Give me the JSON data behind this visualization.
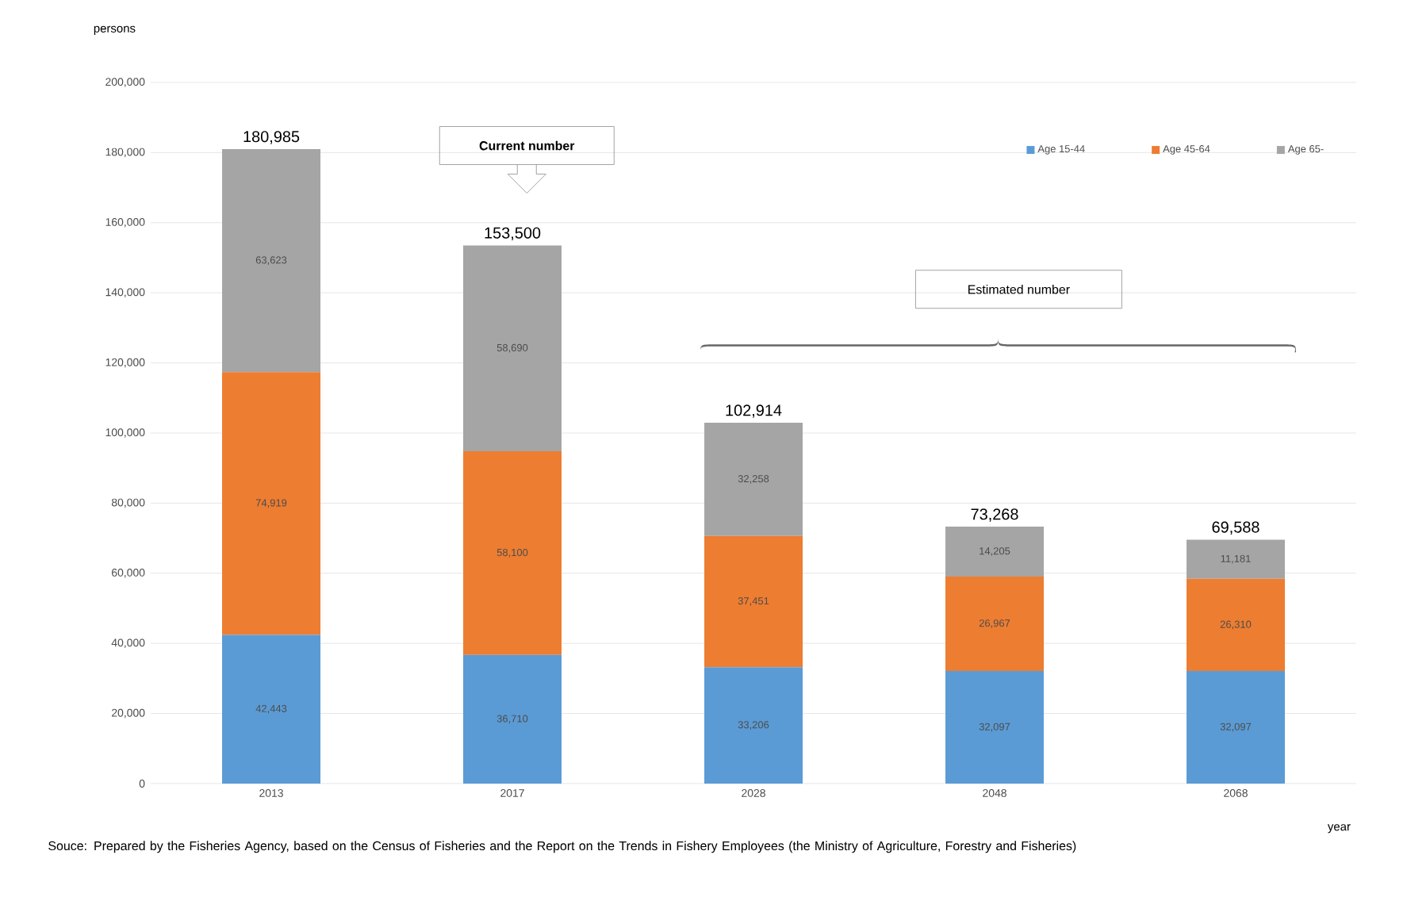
{
  "chart_data": {
    "type": "bar",
    "stacked": true,
    "categories": [
      "2013",
      "2017",
      "2028",
      "2048",
      "2068"
    ],
    "series": [
      {
        "name": "Age 15-44",
        "color": "#5b9bd5",
        "values": [
          42443,
          36710,
          33206,
          32097,
          32097
        ],
        "value_labels": [
          "42,443",
          "36,710",
          "33,206",
          "32,097",
          "32,097"
        ]
      },
      {
        "name": "Age 45-64",
        "color": "#ed7d31",
        "values": [
          74919,
          58100,
          37451,
          26967,
          26310
        ],
        "value_labels": [
          "74,919",
          "58,100",
          "37,451",
          "26,967",
          "26,310"
        ]
      },
      {
        "name": "Age 65-",
        "color": "#a5a5a5",
        "values": [
          63623,
          58690,
          32258,
          14205,
          11181
        ],
        "value_labels": [
          "63,623",
          "58,690",
          "32,258",
          "14,205",
          "11,181"
        ]
      }
    ],
    "totals": [
      "180,985",
      "153,500",
      "102,914",
      "73,268",
      "69,588"
    ],
    "ylabel": "persons",
    "xlabel": "year",
    "ylim": [
      0,
      200000
    ],
    "yticks": [
      0,
      {
        "value": 20000,
        "label": "20,000"
      },
      {
        "value": 40000,
        "label": "40,000"
      },
      {
        "value": 60000,
        "label": "60,000"
      },
      {
        "value": 80000,
        "label": "80,000"
      },
      {
        "value": 100000,
        "label": "100,000"
      },
      {
        "value": 120000,
        "label": "120,000"
      },
      {
        "value": 140000,
        "label": "140,000"
      },
      {
        "value": 160000,
        "label": "160,000"
      },
      {
        "value": 180000,
        "label": "180,000"
      },
      {
        "value": 200000,
        "label": "200,000"
      }
    ],
    "grid": "y",
    "legend": "top right",
    "annotations": [
      "Current number",
      "Estimated number",
      "Souce: Prepared by the Fisheries Agency, based on the Census of Fisheries and the Report on the Trends in Fishery Employees (the Ministry of Agriculture, Forestry and Fisheries)"
    ]
  }
}
